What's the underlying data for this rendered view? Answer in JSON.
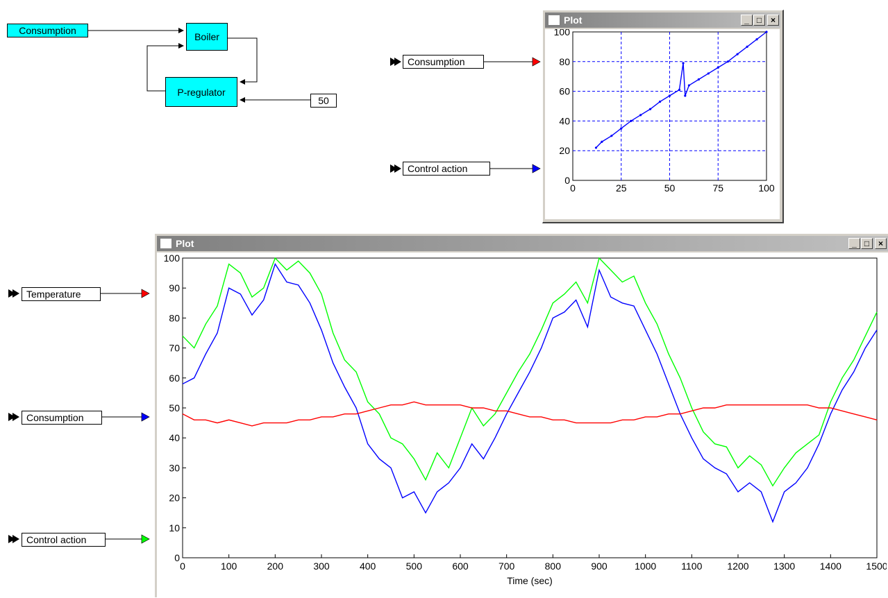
{
  "diagram": {
    "consumption_block": "Consumption",
    "boiler_block": "Boiler",
    "regulator_block": "P-regulator",
    "setpoint_value": "50"
  },
  "xy_window": {
    "title": "Plot",
    "input_labels": [
      "Consumption",
      "Control action"
    ],
    "input_arrow_colors": [
      "#ff0000",
      "#0000ff"
    ]
  },
  "time_window": {
    "title": "Plot",
    "input_labels": [
      "Temperature",
      "Consumption",
      "Control action"
    ],
    "input_arrow_colors": [
      "#ff0000",
      "#0000ff",
      "#00ff00"
    ]
  },
  "window_buttons": {
    "minimize": "_",
    "maximize": "□",
    "close": "×"
  },
  "chart_data": [
    {
      "type": "scatter",
      "xlim": [
        0,
        100
      ],
      "ylim": [
        0,
        100
      ],
      "x_ticks": [
        "0",
        "25",
        "50",
        "75",
        "100"
      ],
      "y_ticks": [
        "0",
        "20",
        "40",
        "60",
        "80",
        "100"
      ],
      "grid": true,
      "color": "#0000ff",
      "x": [
        12,
        15,
        20,
        25,
        30,
        35,
        40,
        45,
        50,
        55,
        57,
        58,
        60,
        65,
        70,
        75,
        80,
        85,
        90,
        95,
        100
      ],
      "y": [
        22,
        26,
        30,
        35,
        40,
        44,
        48,
        53,
        57,
        61,
        79,
        57,
        64,
        68,
        72,
        76,
        80,
        85,
        90,
        95,
        100
      ]
    },
    {
      "type": "line",
      "xlabel": "Time (sec)",
      "xlim": [
        0,
        1500
      ],
      "ylim": [
        0,
        100
      ],
      "x_ticks": [
        "0",
        "100",
        "200",
        "300",
        "400",
        "500",
        "600",
        "700",
        "800",
        "900",
        "1000",
        "1100",
        "1200",
        "1300",
        "1400",
        "1500"
      ],
      "y_ticks": [
        "0",
        "10",
        "20",
        "30",
        "40",
        "50",
        "60",
        "70",
        "80",
        "90",
        "100"
      ],
      "grid": false,
      "x": [
        0,
        25,
        50,
        75,
        100,
        125,
        150,
        175,
        200,
        225,
        250,
        275,
        300,
        325,
        350,
        375,
        400,
        425,
        450,
        475,
        500,
        525,
        550,
        575,
        600,
        625,
        650,
        675,
        700,
        725,
        750,
        775,
        800,
        825,
        850,
        875,
        900,
        925,
        950,
        975,
        1000,
        1025,
        1050,
        1075,
        1100,
        1125,
        1150,
        1175,
        1200,
        1225,
        1250,
        1275,
        1300,
        1325,
        1350,
        1375,
        1400,
        1425,
        1450,
        1475,
        1500
      ],
      "series": [
        {
          "color": "#00ff00",
          "values": [
            74,
            70,
            78,
            84,
            98,
            95,
            87,
            90,
            100,
            96,
            99,
            95,
            88,
            75,
            66,
            62,
            52,
            48,
            40,
            38,
            33,
            26,
            35,
            30,
            40,
            50,
            44,
            48,
            55,
            62,
            68,
            76,
            85,
            88,
            92,
            85,
            100,
            96,
            92,
            94,
            85,
            78,
            68,
            60,
            50,
            42,
            38,
            37,
            30,
            34,
            31,
            24,
            30,
            35,
            38,
            41,
            52,
            60,
            66,
            74,
            82
          ]
        },
        {
          "color": "#0000ff",
          "values": [
            58,
            60,
            68,
            75,
            90,
            88,
            81,
            86,
            98,
            92,
            91,
            85,
            76,
            65,
            57,
            50,
            38,
            33,
            30,
            20,
            22,
            15,
            22,
            25,
            30,
            38,
            33,
            40,
            48,
            55,
            62,
            70,
            80,
            82,
            86,
            77,
            96,
            87,
            85,
            84,
            76,
            68,
            58,
            48,
            40,
            33,
            30,
            28,
            22,
            25,
            22,
            12,
            22,
            25,
            30,
            38,
            48,
            56,
            62,
            70,
            76
          ]
        },
        {
          "color": "#ff0000",
          "values": [
            48,
            46,
            46,
            45,
            46,
            45,
            44,
            45,
            45,
            45,
            46,
            46,
            47,
            47,
            48,
            48,
            49,
            50,
            51,
            51,
            52,
            51,
            51,
            51,
            51,
            50,
            50,
            49,
            49,
            48,
            47,
            47,
            46,
            46,
            45,
            45,
            45,
            45,
            46,
            46,
            47,
            47,
            48,
            48,
            49,
            50,
            50,
            51,
            51,
            51,
            51,
            51,
            51,
            51,
            51,
            50,
            50,
            49,
            48,
            47,
            46
          ]
        }
      ]
    }
  ]
}
